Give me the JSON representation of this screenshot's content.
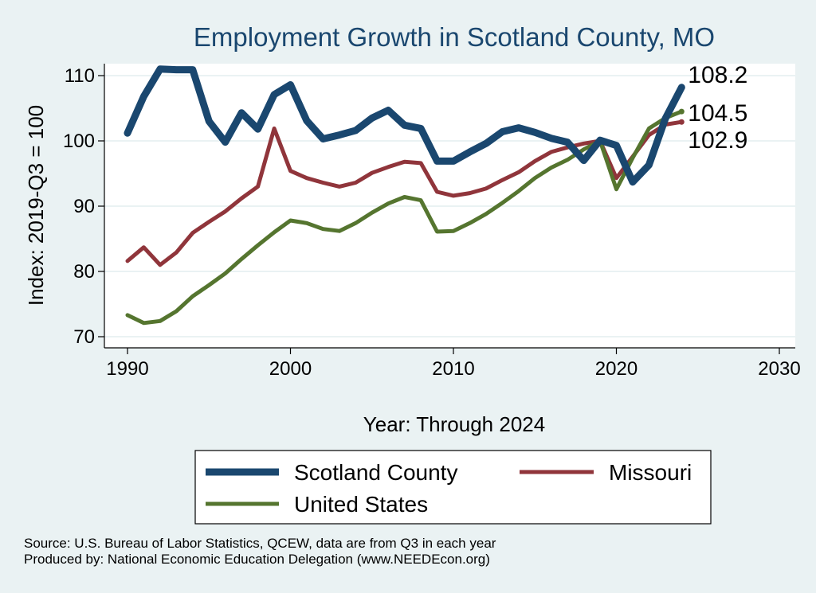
{
  "chart_data": {
    "type": "line",
    "title": "Employment Growth in Scotland County, MO",
    "xlabel": "Year: Through 2024",
    "ylabel": "Index: 2019-Q3 = 100",
    "xlim": [
      1990,
      2030
    ],
    "ylim": [
      68,
      112
    ],
    "xticks": [
      1990,
      2000,
      2010,
      2020,
      2030
    ],
    "yticks": [
      70,
      80,
      90,
      100,
      110
    ],
    "grid": "horizontal",
    "legend_position": "bottom",
    "x": [
      1990,
      1991,
      1992,
      1993,
      1994,
      1995,
      1996,
      1997,
      1998,
      1999,
      2000,
      2001,
      2002,
      2003,
      2004,
      2005,
      2006,
      2007,
      2008,
      2009,
      2010,
      2011,
      2012,
      2013,
      2014,
      2015,
      2016,
      2017,
      2018,
      2019,
      2020,
      2021,
      2022,
      2023,
      2024
    ],
    "series": [
      {
        "name": "Scotland  County",
        "color": "#1a476f",
        "width": 9,
        "end_label": "108.2",
        "values": [
          101.2,
          106.8,
          111.0,
          110.9,
          110.9,
          103.0,
          99.8,
          104.3,
          101.8,
          107.1,
          108.6,
          103.1,
          100.3,
          100.9,
          101.6,
          103.5,
          104.7,
          102.4,
          101.9,
          96.9,
          96.9,
          98.3,
          99.6,
          101.4,
          102.0,
          101.3,
          100.4,
          99.8,
          97.0,
          100.1,
          99.3,
          93.7,
          96.3,
          103.4,
          108.2
        ]
      },
      {
        "name": "Missouri",
        "color": "#90353b",
        "width": 5,
        "end_label": "102.9",
        "values": [
          81.6,
          83.7,
          81.0,
          82.9,
          85.9,
          87.6,
          89.2,
          91.2,
          93.0,
          101.9,
          95.4,
          94.3,
          93.6,
          93.0,
          93.6,
          95.1,
          96.0,
          96.8,
          96.6,
          92.2,
          91.6,
          92.0,
          92.7,
          94.0,
          95.2,
          96.9,
          98.3,
          99.0,
          99.6,
          100.0,
          94.3,
          97.6,
          100.9,
          102.5,
          102.9
        ]
      },
      {
        "name": "United States",
        "color": "#55752f",
        "width": 5,
        "end_label": "104.5",
        "values": [
          73.3,
          72.1,
          72.4,
          73.9,
          76.2,
          77.9,
          79.7,
          81.9,
          84.0,
          86.0,
          87.8,
          87.4,
          86.5,
          86.2,
          87.4,
          89.0,
          90.4,
          91.4,
          90.9,
          86.1,
          86.2,
          87.4,
          88.8,
          90.5,
          92.3,
          94.3,
          95.9,
          97.1,
          98.7,
          100.0,
          92.6,
          97.4,
          101.9,
          103.5,
          104.5
        ]
      }
    ],
    "source_lines": [
      "Source: U.S. Bureau of Labor Statistics, QCEW, data are from Q3 in each year",
      "Produced by: National Economic Education Delegation (www.NEEDEcon.org)"
    ]
  }
}
